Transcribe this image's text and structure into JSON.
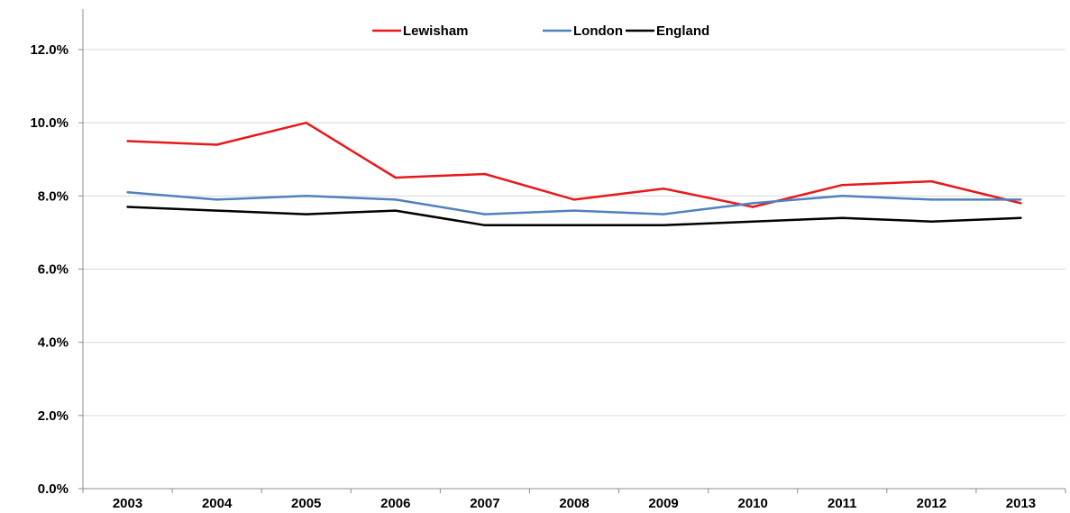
{
  "chart_data": {
    "type": "line",
    "title": "",
    "xlabel": "",
    "ylabel": "",
    "categories": [
      "2003",
      "2004",
      "2005",
      "2006",
      "2007",
      "2008",
      "2009",
      "2010",
      "2011",
      "2012",
      "2013"
    ],
    "series": [
      {
        "name": "Lewisham",
        "color": "#e8191b",
        "values": [
          9.5,
          9.4,
          10.0,
          8.5,
          8.6,
          7.9,
          8.2,
          7.7,
          8.3,
          8.4,
          7.8
        ]
      },
      {
        "name": "London",
        "color": "#4f81bd",
        "values": [
          8.1,
          7.9,
          8.0,
          7.9,
          7.5,
          7.6,
          7.5,
          7.8,
          8.0,
          7.9,
          7.9
        ]
      },
      {
        "name": "England",
        "color": "#000000",
        "values": [
          7.7,
          7.6,
          7.5,
          7.6,
          7.2,
          7.2,
          7.2,
          7.3,
          7.4,
          7.3,
          7.4
        ]
      }
    ],
    "ylim": [
      0,
      12
    ],
    "yticks": [
      0,
      2,
      4,
      6,
      8,
      10,
      12
    ],
    "ytick_labels": [
      "0.0%",
      "2.0%",
      "4.0%",
      "6.0%",
      "8.0%",
      "10.0%",
      "12.0%"
    ],
    "grid": true,
    "legend_position": "top-center"
  }
}
